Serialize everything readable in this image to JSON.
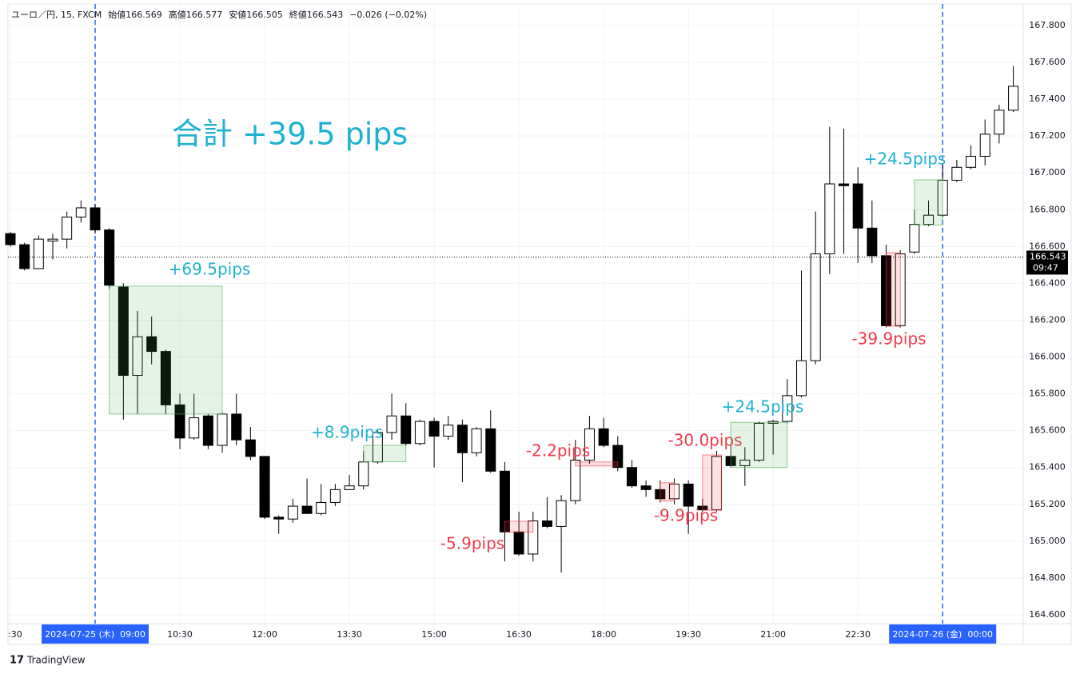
{
  "chart_data": {
    "type": "candlestick",
    "header": [
      "ユーロ／円, 15, FXCM",
      "始値166.569",
      "高値166.577",
      "安値166.505",
      "終値166.543",
      "−0.026 (−0.02%)"
    ],
    "annotation": "合計 +39.5 pips",
    "brand": "TradingView",
    "categories": [
      ":30",
      null,
      null,
      null,
      null,
      null,
      "2024-07-25 (木)  09:00",
      null,
      null,
      null,
      null,
      null,
      "10:30",
      null,
      null,
      null,
      null,
      null,
      "12:00",
      null,
      null,
      null,
      null,
      null,
      "13:30",
      null,
      null,
      null,
      null,
      null,
      "15:00",
      null,
      null,
      null,
      null,
      null,
      "16:30",
      null,
      null,
      null,
      null,
      null,
      "18:00",
      null,
      null,
      null,
      null,
      null,
      "19:30",
      null,
      null,
      null,
      null,
      null,
      "21:00",
      null,
      null,
      null,
      null,
      null,
      "22:30",
      null,
      null,
      null,
      null,
      null,
      "2024-07-26 (金)  00:00",
      null,
      null,
      null,
      null,
      null
    ],
    "open": [
      166.67,
      166.61,
      166.48,
      166.63,
      166.64,
      166.76,
      166.81,
      166.69,
      166.38,
      165.9,
      166.11,
      166.03,
      165.74,
      165.56,
      165.68,
      165.52,
      165.69,
      165.55,
      165.46,
      165.13,
      165.12,
      165.19,
      165.15,
      165.21,
      165.28,
      165.3,
      165.43,
      165.59,
      165.68,
      165.53,
      165.65,
      165.57,
      165.63,
      165.48,
      165.61,
      165.38,
      165.05,
      164.93,
      165.11,
      165.08,
      165.22,
      165.44,
      165.61,
      165.52,
      165.4,
      165.3,
      165.28,
      165.23,
      165.31,
      165.19,
      165.17,
      165.46,
      165.41,
      165.44,
      165.64,
      165.65,
      165.79,
      165.98,
      166.56,
      166.94,
      166.94,
      166.7,
      166.55,
      166.17,
      166.57,
      166.72,
      166.77,
      166.96,
      167.03,
      167.09,
      167.21,
      167.34
    ],
    "high": [
      166.68,
      166.62,
      166.66,
      166.67,
      166.79,
      166.85,
      166.83,
      166.7,
      166.4,
      166.25,
      166.22,
      166.04,
      165.8,
      165.8,
      165.69,
      165.7,
      165.8,
      165.62,
      165.46,
      165.14,
      165.23,
      165.34,
      165.31,
      165.31,
      165.36,
      165.49,
      165.6,
      165.8,
      165.75,
      165.66,
      165.67,
      165.68,
      165.66,
      165.62,
      165.71,
      165.43,
      165.16,
      165.16,
      165.24,
      165.25,
      165.55,
      165.68,
      165.67,
      165.57,
      165.44,
      165.33,
      165.33,
      165.34,
      165.33,
      165.23,
      165.49,
      165.52,
      165.51,
      165.65,
      165.66,
      165.88,
      166.47,
      166.79,
      167.25,
      167.24,
      167.03,
      166.85,
      166.61,
      166.58,
      166.8,
      166.85,
      167.05,
      167.07,
      167.15,
      167.29,
      167.37,
      167.58
    ],
    "low": [
      166.6,
      166.47,
      166.48,
      166.53,
      166.59,
      166.73,
      166.67,
      166.37,
      165.66,
      165.69,
      165.96,
      165.69,
      165.5,
      165.55,
      165.5,
      165.48,
      165.52,
      165.44,
      165.12,
      165.04,
      165.1,
      165.15,
      165.14,
      165.19,
      165.28,
      165.28,
      165.42,
      165.55,
      165.52,
      165.52,
      165.4,
      165.55,
      165.32,
      165.46,
      165.37,
      164.89,
      164.92,
      164.89,
      165.07,
      164.83,
      165.2,
      165.42,
      165.51,
      165.38,
      165.29,
      165.24,
      165.21,
      165.2,
      165.04,
      165.16,
      165.16,
      165.4,
      165.3,
      165.43,
      165.47,
      165.64,
      165.78,
      165.96,
      166.45,
      166.56,
      166.51,
      166.51,
      166.16,
      166.16,
      166.56,
      166.71,
      166.76,
      166.95,
      167.02,
      167.04,
      167.16,
      167.33
    ],
    "close": [
      166.61,
      166.48,
      166.64,
      166.64,
      166.76,
      166.81,
      166.69,
      166.39,
      165.9,
      166.11,
      166.03,
      165.74,
      165.56,
      165.67,
      165.52,
      165.69,
      165.55,
      165.46,
      165.13,
      165.12,
      165.19,
      165.15,
      165.21,
      165.28,
      165.3,
      165.43,
      165.59,
      165.68,
      165.53,
      165.65,
      165.57,
      165.63,
      165.48,
      165.61,
      165.38,
      165.05,
      164.93,
      165.11,
      165.08,
      165.22,
      165.44,
      165.61,
      165.52,
      165.4,
      165.3,
      165.28,
      165.23,
      165.31,
      165.19,
      165.17,
      165.46,
      165.41,
      165.44,
      165.64,
      165.65,
      165.79,
      165.98,
      166.56,
      166.94,
      166.93,
      166.7,
      166.55,
      166.17,
      166.56,
      166.72,
      166.77,
      166.96,
      167.03,
      167.09,
      167.21,
      167.34,
      167.47
    ],
    "up_color": "#ffffff",
    "down_color": "#000000",
    "ylim": [
      164.552,
      167.917
    ],
    "yticks": [
      {
        "value": 164.6,
        "label": "164.600"
      },
      {
        "value": 164.8,
        "label": "164.800"
      },
      {
        "value": 165.0,
        "label": "165.000"
      },
      {
        "value": 165.2,
        "label": "165.200"
      },
      {
        "value": 165.4,
        "label": "165.400"
      },
      {
        "value": 165.6,
        "label": "165.600"
      },
      {
        "value": 165.8,
        "label": "165.800"
      },
      {
        "value": 166.0,
        "label": "166.000"
      },
      {
        "value": 166.2,
        "label": "166.200"
      },
      {
        "value": 166.4,
        "label": "166.400"
      },
      {
        "value": 166.6,
        "label": "166.600"
      },
      {
        "value": 166.8,
        "label": "166.800"
      },
      {
        "value": 167.0,
        "label": "167.000"
      },
      {
        "value": 167.2,
        "label": "167.200"
      },
      {
        "value": 167.4,
        "label": "167.400"
      },
      {
        "value": 167.6,
        "label": "167.600"
      },
      {
        "value": 167.8,
        "label": "167.800"
      }
    ],
    "grid": true,
    "last_price": {
      "value": 166.543,
      "label": "166.543"
    },
    "countdown": "09:47",
    "boxes": [
      {
        "label": "+69.5pips",
        "top": 166.385,
        "bottom": 165.69,
        "color": "#4caf50",
        "text_color": "#1fb2cf"
      },
      {
        "label": "+8.9pips",
        "top": 165.52,
        "bottom": 165.431,
        "color": "#4caf50",
        "text_color": "#1fb2cf"
      },
      {
        "label": "-2.2pips",
        "top": 165.43,
        "bottom": 165.408,
        "color": "#f23645",
        "text_color": "#ee3b48"
      },
      {
        "label": "-5.9pips",
        "top": 165.108,
        "bottom": 165.049,
        "color": "#f23645",
        "text_color": "#ee3b48"
      },
      {
        "label": "-9.9pips",
        "top": 165.317,
        "bottom": 165.218,
        "color": "#f23645",
        "text_color": "#ee3b48"
      },
      {
        "label": "-30.0pips",
        "top": 165.468,
        "bottom": 165.168,
        "color": "#f23645",
        "text_color": "#ee3b48"
      },
      {
        "label": "+24.5pips",
        "top": 165.645,
        "bottom": 165.4,
        "color": "#4caf50",
        "text_color": "#1fb2cf"
      },
      {
        "label": "-39.9pips",
        "top": 166.566,
        "bottom": 166.167,
        "color": "#f23645",
        "text_color": "#ee3b48"
      },
      {
        "label": "+24.5pips",
        "top": 166.962,
        "bottom": 166.717,
        "color": "#4caf50",
        "text_color": "#1fb2cf"
      }
    ]
  }
}
